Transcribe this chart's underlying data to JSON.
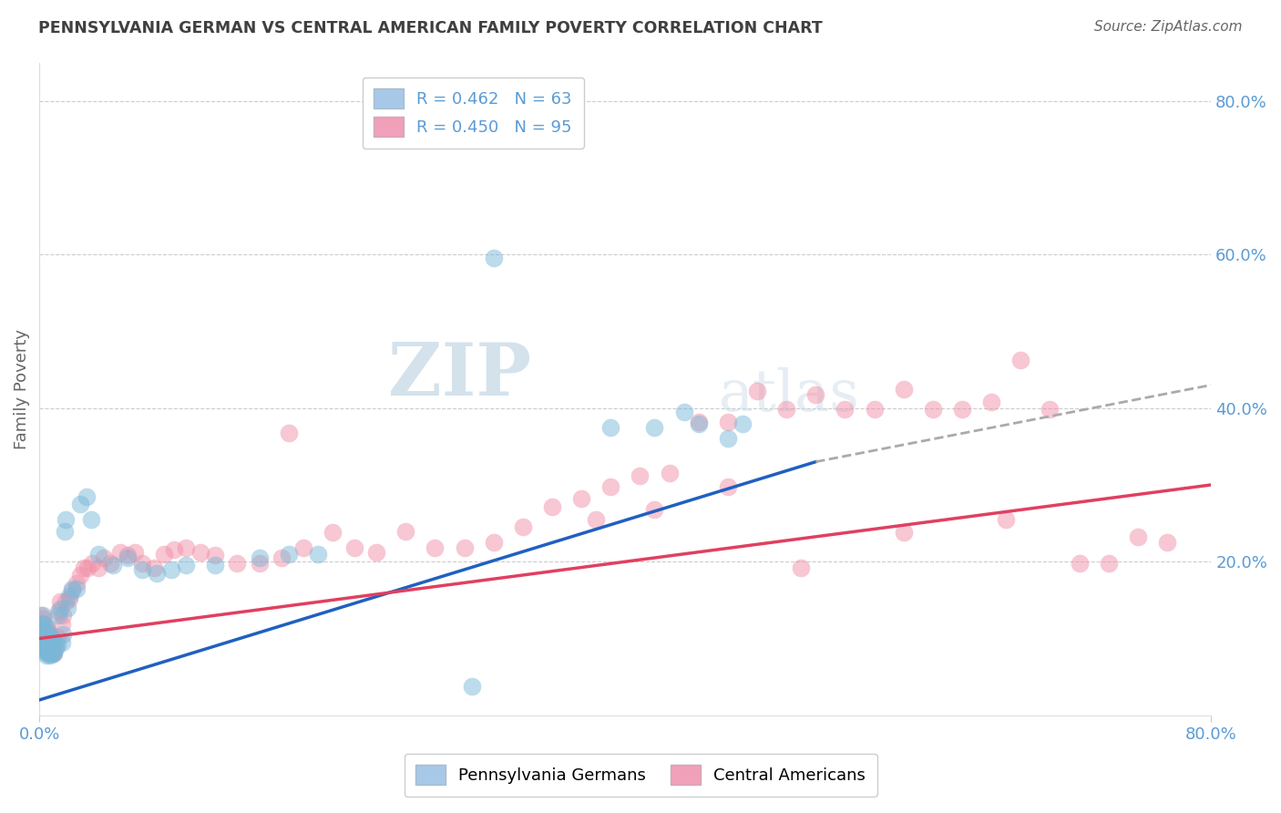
{
  "title": "PENNSYLVANIA GERMAN VS CENTRAL AMERICAN FAMILY POVERTY CORRELATION CHART",
  "source": "Source: ZipAtlas.com",
  "ylabel_label": "Family Poverty",
  "legend_entries": [
    {
      "label": "R = 0.462   N = 63",
      "color": "#a8c8e8"
    },
    {
      "label": "R = 0.450   N = 95",
      "color": "#f0a0b8"
    }
  ],
  "blue_color": "#7ab8d8",
  "pink_color": "#f090a8",
  "blue_line_color": "#2060c0",
  "pink_line_color": "#e04060",
  "dashed_color": "#aaaaaa",
  "watermark": "ZIPatlas",
  "xlim": [
    0,
    0.8
  ],
  "ylim": [
    0,
    0.85
  ],
  "blue_scatter_x": [
    0.001,
    0.001,
    0.002,
    0.002,
    0.002,
    0.003,
    0.003,
    0.003,
    0.003,
    0.004,
    0.004,
    0.004,
    0.005,
    0.005,
    0.005,
    0.005,
    0.006,
    0.006,
    0.006,
    0.007,
    0.007,
    0.007,
    0.008,
    0.008,
    0.009,
    0.009,
    0.01,
    0.01,
    0.011,
    0.012,
    0.013,
    0.014,
    0.015,
    0.016,
    0.017,
    0.018,
    0.019,
    0.02,
    0.022,
    0.025,
    0.028,
    0.032,
    0.035,
    0.04,
    0.05,
    0.06,
    0.07,
    0.08,
    0.09,
    0.1,
    0.12,
    0.15,
    0.17,
    0.19,
    0.39,
    0.42,
    0.44,
    0.45,
    0.47,
    0.48,
    0.31,
    0.33,
    0.295
  ],
  "blue_scatter_y": [
    0.1,
    0.12,
    0.09,
    0.11,
    0.13,
    0.085,
    0.095,
    0.108,
    0.118,
    0.082,
    0.095,
    0.108,
    0.078,
    0.09,
    0.1,
    0.115,
    0.08,
    0.092,
    0.105,
    0.078,
    0.09,
    0.102,
    0.08,
    0.095,
    0.082,
    0.098,
    0.08,
    0.095,
    0.088,
    0.092,
    0.13,
    0.138,
    0.095,
    0.105,
    0.24,
    0.255,
    0.14,
    0.155,
    0.165,
    0.165,
    0.275,
    0.285,
    0.255,
    0.21,
    0.195,
    0.205,
    0.19,
    0.185,
    0.19,
    0.195,
    0.195,
    0.205,
    0.21,
    0.21,
    0.375,
    0.375,
    0.395,
    0.38,
    0.36,
    0.38,
    0.595,
    0.75,
    0.038
  ],
  "pink_scatter_x": [
    0.001,
    0.001,
    0.001,
    0.002,
    0.002,
    0.002,
    0.003,
    0.003,
    0.003,
    0.004,
    0.004,
    0.004,
    0.005,
    0.005,
    0.005,
    0.006,
    0.006,
    0.006,
    0.007,
    0.007,
    0.007,
    0.008,
    0.008,
    0.009,
    0.009,
    0.01,
    0.01,
    0.011,
    0.012,
    0.013,
    0.014,
    0.015,
    0.016,
    0.018,
    0.02,
    0.022,
    0.025,
    0.028,
    0.03,
    0.033,
    0.036,
    0.04,
    0.044,
    0.048,
    0.055,
    0.06,
    0.065,
    0.07,
    0.078,
    0.085,
    0.092,
    0.1,
    0.11,
    0.12,
    0.135,
    0.15,
    0.165,
    0.18,
    0.2,
    0.215,
    0.23,
    0.25,
    0.27,
    0.29,
    0.31,
    0.33,
    0.35,
    0.37,
    0.39,
    0.41,
    0.43,
    0.45,
    0.47,
    0.49,
    0.51,
    0.53,
    0.55,
    0.57,
    0.59,
    0.61,
    0.63,
    0.65,
    0.67,
    0.69,
    0.71,
    0.73,
    0.75,
    0.77,
    0.17,
    0.38,
    0.42,
    0.47,
    0.52,
    0.59,
    0.66
  ],
  "pink_scatter_y": [
    0.108,
    0.118,
    0.13,
    0.1,
    0.112,
    0.125,
    0.095,
    0.108,
    0.12,
    0.09,
    0.1,
    0.115,
    0.085,
    0.095,
    0.11,
    0.082,
    0.095,
    0.108,
    0.08,
    0.092,
    0.105,
    0.082,
    0.098,
    0.08,
    0.095,
    0.082,
    0.098,
    0.09,
    0.102,
    0.135,
    0.148,
    0.118,
    0.13,
    0.148,
    0.152,
    0.162,
    0.172,
    0.182,
    0.192,
    0.192,
    0.198,
    0.192,
    0.205,
    0.198,
    0.212,
    0.208,
    0.212,
    0.198,
    0.192,
    0.21,
    0.216,
    0.218,
    0.212,
    0.208,
    0.198,
    0.198,
    0.205,
    0.218,
    0.238,
    0.218,
    0.212,
    0.24,
    0.218,
    0.218,
    0.225,
    0.245,
    0.272,
    0.282,
    0.298,
    0.312,
    0.315,
    0.382,
    0.382,
    0.422,
    0.398,
    0.418,
    0.398,
    0.398,
    0.425,
    0.398,
    0.398,
    0.408,
    0.462,
    0.398,
    0.198,
    0.198,
    0.232,
    0.225,
    0.368,
    0.255,
    0.268,
    0.298,
    0.192,
    0.238,
    0.255
  ]
}
